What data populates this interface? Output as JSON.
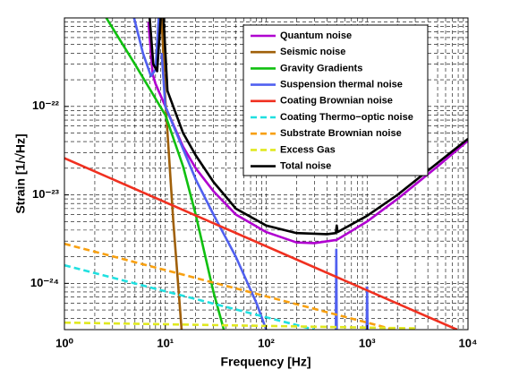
{
  "chart_data": {
    "type": "line",
    "xlabel": "Frequency [Hz]",
    "ylabel": "Strain [1/√Hz]",
    "xscale": "log",
    "yscale": "log",
    "grid": true,
    "legend": "upper right",
    "xlim": [
      1,
      10000
    ],
    "ylim": [
      3e-25,
      1e-21
    ],
    "xticks": [
      {
        "value": 1,
        "label": "10⁰"
      },
      {
        "value": 10,
        "label": "10¹"
      },
      {
        "value": 100,
        "label": "10²"
      },
      {
        "value": 1000,
        "label": "10³"
      },
      {
        "value": 10000,
        "label": "10⁴"
      }
    ],
    "yticks": [
      {
        "value": 1e-24,
        "label": "10⁻²⁴"
      },
      {
        "value": 1e-23,
        "label": "10⁻²³"
      },
      {
        "value": 1e-22,
        "label": "10⁻²²"
      }
    ],
    "x_minor_ticks": [
      2,
      3,
      4,
      5,
      6,
      7,
      8,
      9,
      20,
      30,
      40,
      50,
      60,
      70,
      80,
      90,
      200,
      300,
      400,
      500,
      600,
      700,
      800,
      900,
      2000,
      3000,
      4000,
      5000,
      6000,
      7000,
      8000,
      9000
    ],
    "y_minor_ticks": [
      4e-25,
      5e-25,
      6e-25,
      7e-25,
      8e-25,
      9e-25,
      2e-24,
      3e-24,
      4e-24,
      5e-24,
      6e-24,
      7e-24,
      8e-24,
      9e-24,
      2e-23,
      3e-23,
      4e-23,
      5e-23,
      6e-23,
      7e-23,
      8e-23,
      9e-23,
      2e-22,
      3e-22,
      4e-22,
      5e-22,
      6e-22,
      7e-22,
      8e-22,
      9e-22
    ],
    "series": [
      {
        "name": "Quantum noise",
        "color": "#b000d0",
        "style": "solid",
        "x": [
          6.8,
          7.5,
          8,
          10,
          15,
          20,
          30,
          50,
          100,
          200,
          300,
          500,
          1000,
          2000,
          5000,
          10000
        ],
        "values": [
          9e-22,
          2.3e-22,
          1.8e-22,
          1e-22,
          3.5e-23,
          2e-23,
          1.1e-23,
          6e-24,
          3.8e-24,
          2.9e-24,
          2.85e-24,
          3.1e-24,
          5e-24,
          9e-24,
          2.1e-23,
          4.1e-23
        ]
      },
      {
        "name": "Seismic noise",
        "color": "#a0600a",
        "style": "solid",
        "x": [
          9.2,
          10,
          12,
          14.5
        ],
        "values": [
          1e-21,
          1.2e-22,
          5e-24,
          3e-25
        ]
      },
      {
        "name": "Gravity Gradients",
        "color": "#10c010",
        "style": "solid",
        "x": [
          2.6,
          5,
          10,
          15,
          20,
          30,
          38
        ],
        "values": [
          1e-21,
          3e-22,
          8e-23,
          2.1e-23,
          6e-24,
          8e-25,
          3e-25
        ]
      },
      {
        "name": "Suspension thermal noise",
        "color": "#5060f0",
        "style": "solid",
        "x": [
          4.9,
          6,
          7.2,
          8,
          8.6,
          9,
          9.2,
          10,
          20,
          30,
          50,
          80,
          100,
          480,
          490,
          495,
          500,
          505,
          990,
          1000,
          1010
        ],
        "values": [
          1e-21,
          4e-22,
          2.2e-22,
          2.6e-22,
          1e-21,
          null,
          4e-22,
          1e-22,
          1.5e-23,
          6e-24,
          2e-24,
          6e-25,
          3e-25,
          null,
          3e-25,
          2.4e-24,
          3e-25,
          null,
          3e-25,
          9e-25,
          3e-25
        ]
      },
      {
        "name": "Coating Brownian noise",
        "color": "#f03020",
        "style": "solid",
        "x": [
          1,
          7800
        ],
        "values": [
          2.6e-23,
          3e-25
        ]
      },
      {
        "name": "Coating Thermo−optic noise",
        "color": "#20e0e0",
        "style": "dashed",
        "x": [
          1,
          300
        ],
        "values": [
          1.6e-24,
          3e-25
        ]
      },
      {
        "name": "Substrate Brownian noise",
        "color": "#f8a010",
        "style": "dashed",
        "x": [
          1,
          1850
        ],
        "values": [
          2.8e-24,
          3e-25
        ]
      },
      {
        "name": "Excess Gas",
        "color": "#e0e820",
        "style": "dashed",
        "x": [
          1,
          3000
        ],
        "values": [
          3.6e-25,
          3.1e-25
        ]
      },
      {
        "name": "Total noise",
        "color": "#000000",
        "style": "solid",
        "x": [
          7.0,
          7.6,
          8.3,
          9.0,
          9.3,
          9.6,
          10.5,
          15,
          20,
          30,
          50,
          100,
          200,
          400,
          490,
          500,
          510,
          1000,
          2000,
          5000,
          10000
        ],
        "values": [
          1e-21,
          3e-22,
          2.5e-22,
          1e-21,
          null,
          1e-21,
          1.5e-22,
          5e-23,
          2.8e-23,
          1.4e-23,
          7e-24,
          4.5e-24,
          3.7e-24,
          3.6e-24,
          3.7e-24,
          4.5e-24,
          3.8e-24,
          5.8e-24,
          1e-23,
          2.3e-23,
          4.3e-23
        ]
      }
    ]
  }
}
